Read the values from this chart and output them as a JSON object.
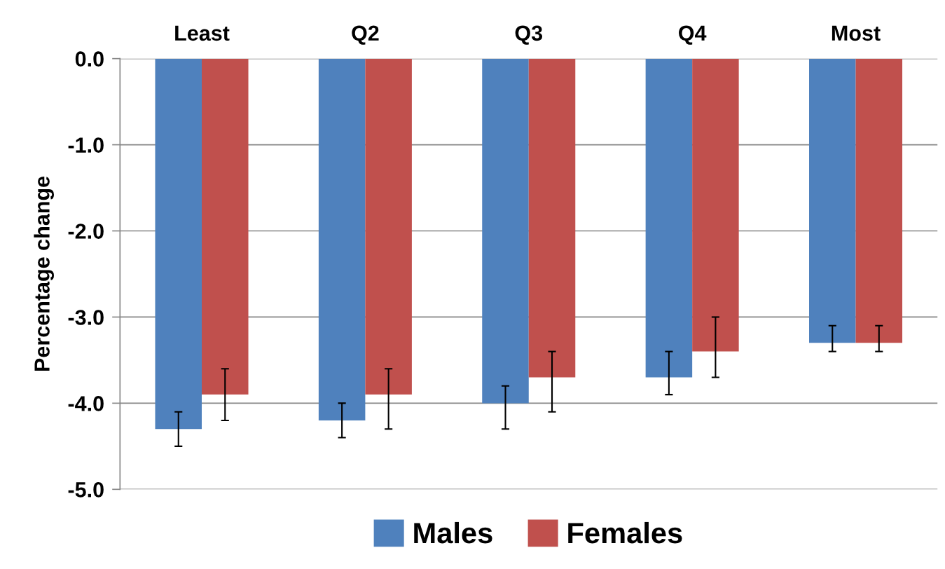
{
  "chart_data": {
    "type": "bar",
    "ylabel": "Percentage change",
    "categories": [
      "Least",
      "Q2",
      "Q3",
      "Q4",
      "Most"
    ],
    "series": [
      {
        "name": "Males",
        "color": "#4f81bd",
        "values": [
          -4.3,
          -4.2,
          -4.0,
          -3.7,
          -3.3
        ],
        "errors": [
          [
            -4.5,
            -4.1
          ],
          [
            -4.4,
            -4.0
          ],
          [
            -4.3,
            -3.8
          ],
          [
            -3.9,
            -3.4
          ],
          [
            -3.4,
            -3.1
          ]
        ]
      },
      {
        "name": "Females",
        "color": "#c0504d",
        "values": [
          -3.9,
          -3.9,
          -3.7,
          -3.4,
          -3.3
        ],
        "errors": [
          [
            -4.2,
            -3.6
          ],
          [
            -4.3,
            -3.6
          ],
          [
            -4.1,
            -3.4
          ],
          [
            -3.7,
            -3.0
          ],
          [
            -3.4,
            -3.1
          ]
        ]
      }
    ],
    "ylim": [
      -5,
      0
    ],
    "yticks": [
      {
        "value": 0,
        "label": "0.0"
      },
      {
        "value": -1,
        "label": "-1.0"
      },
      {
        "value": -2,
        "label": "-2.0"
      },
      {
        "value": -3,
        "label": "-3.0"
      },
      {
        "value": -4,
        "label": "-4.0"
      },
      {
        "value": -5,
        "label": "-5.0"
      }
    ],
    "grid": "y",
    "legend": "bottom"
  }
}
